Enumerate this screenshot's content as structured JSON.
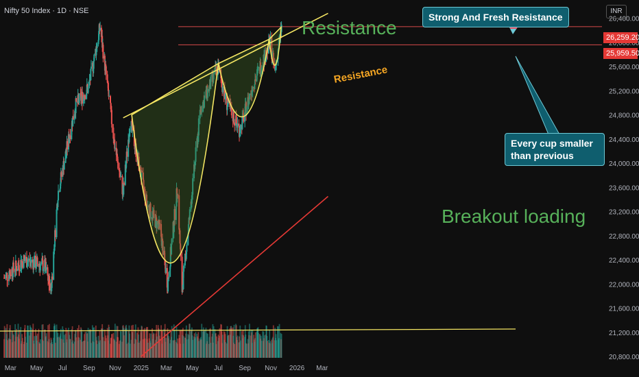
{
  "header": {
    "title": "Nifty 50 Index · 1D · NSE",
    "currency": "INR"
  },
  "colors": {
    "up": "#26a69a",
    "down": "#ef5350",
    "resistance_line": "#f5e663",
    "trend_line": "#e53935",
    "cup_fill": "#2e4a1e",
    "price_box": "#e53935",
    "callout_bg": "#0f5e6e"
  },
  "chart_data": {
    "type": "candlestick",
    "title": "Nifty 50 Index · 1D · NSE",
    "x_ticks": [
      "Mar",
      "May",
      "Jul",
      "Sep",
      "Nov",
      "2025",
      "Mar",
      "May",
      "Jul",
      "Sep",
      "Nov",
      "2026",
      "Mar"
    ],
    "y_ticks": [
      20800,
      21200,
      21600,
      22000,
      22400,
      22800,
      23200,
      23600,
      24000,
      24400,
      24800,
      25200,
      25600,
      26000,
      26400
    ],
    "ylim": [
      20800,
      26600
    ],
    "highlighted_prices": [
      26259.2,
      25959.5
    ],
    "price_path": [
      {
        "date": "2024-02-15",
        "close": 22100
      },
      {
        "date": "2024-04-01",
        "close": 22400
      },
      {
        "date": "2024-05-20",
        "close": 22300
      },
      {
        "date": "2024-06-04",
        "close": 21900
      },
      {
        "date": "2024-06-20",
        "close": 23500
      },
      {
        "date": "2024-07-31",
        "close": 24950
      },
      {
        "date": "2024-08-31",
        "close": 25250
      },
      {
        "date": "2024-09-27",
        "close": 26259
      },
      {
        "date": "2024-10-31",
        "close": 24300
      },
      {
        "date": "2024-11-20",
        "close": 23500
      },
      {
        "date": "2024-12-06",
        "close": 24700
      },
      {
        "date": "2025-01-15",
        "close": 23300
      },
      {
        "date": "2025-02-15",
        "close": 22900
      },
      {
        "date": "2025-03-04",
        "close": 22000
      },
      {
        "date": "2025-03-27",
        "close": 23600
      },
      {
        "date": "2025-04-07",
        "close": 21900
      },
      {
        "date": "2025-05-20",
        "close": 24900
      },
      {
        "date": "2025-06-30",
        "close": 25600
      },
      {
        "date": "2025-07-20",
        "close": 25000
      },
      {
        "date": "2025-08-20",
        "close": 24550
      },
      {
        "date": "2025-09-20",
        "close": 25300
      },
      {
        "date": "2025-10-31",
        "close": 26000
      },
      {
        "date": "2025-11-10",
        "close": 25500
      },
      {
        "date": "2025-11-26",
        "close": 26260
      }
    ],
    "annotations": [
      {
        "text": "Resistance",
        "color": "#57b15a"
      },
      {
        "text": "Resistance",
        "color": "#f5a623"
      },
      {
        "text": "Breakout loading",
        "color": "#57b15a"
      },
      {
        "text": "Strong And Fresh Resistance",
        "style": "callout"
      },
      {
        "text": "Every cup smaller than previous",
        "style": "callout"
      }
    ],
    "resistance_trendline": [
      {
        "date": "2024-11-20",
        "price": 24750
      },
      {
        "date": "2026-03-15",
        "price": 26480
      }
    ],
    "support_trendline": [
      {
        "date": "2025-01-01",
        "price": 20800
      },
      {
        "date": "2026-03-15",
        "price": 23450
      }
    ],
    "horizontal_levels": [
      26259.2,
      25959.5
    ]
  }
}
